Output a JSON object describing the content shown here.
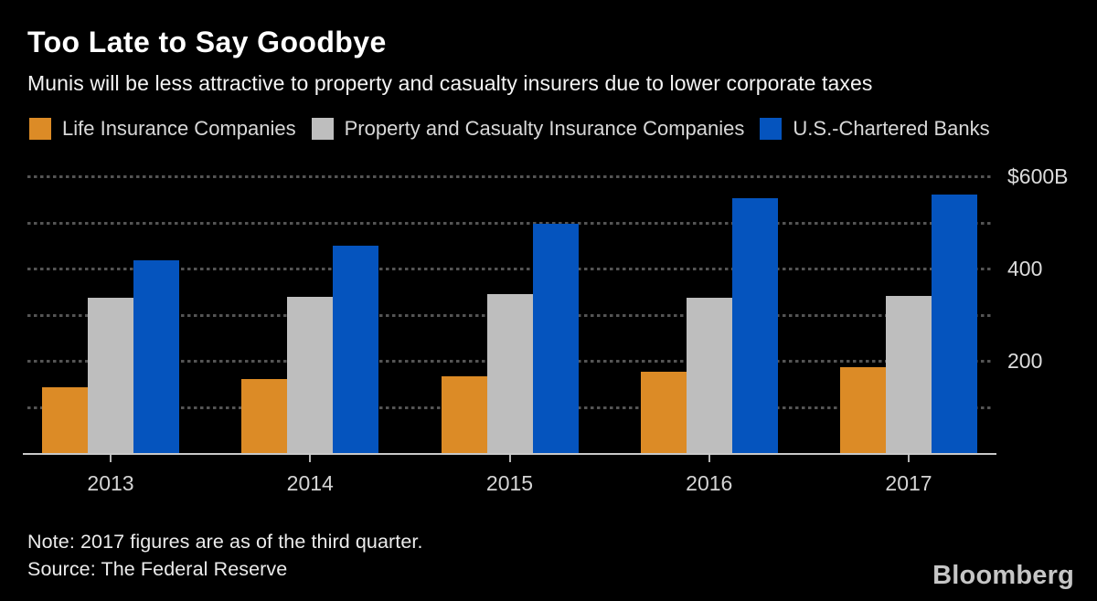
{
  "header": {
    "title": "Too Late to Say Goodbye",
    "subtitle": "Munis will be less attractive to property and casualty insurers due to lower corporate taxes"
  },
  "legend": [
    {
      "label": "Life Insurance Companies",
      "color": "#dc8b26"
    },
    {
      "label": "Property and Casualty Insurance Companies",
      "color": "#bebebe"
    },
    {
      "label": "U.S.-Chartered Banks",
      "color": "#0554be"
    }
  ],
  "chart_data": {
    "type": "bar",
    "title": "Too Late to Say Goodbye",
    "subtitle": "Munis will be less attractive to property and casualty insurers due to lower corporate taxes",
    "categories": [
      "2013",
      "2014",
      "2015",
      "2016",
      "2017"
    ],
    "series": [
      {
        "name": "Life Insurance Companies",
        "color": "#dc8b26",
        "values": [
          143,
          160,
          166,
          176,
          186
        ]
      },
      {
        "name": "Property and Casualty Insurance Companies",
        "color": "#bebebe",
        "values": [
          337,
          339,
          345,
          337,
          341
        ]
      },
      {
        "name": "U.S.-Chartered Banks",
        "color": "#0554be",
        "values": [
          417,
          449,
          498,
          552,
          560
        ]
      }
    ],
    "unit": "$B",
    "ylim": [
      0,
      640
    ],
    "ytick_values": [
      200,
      400,
      600
    ],
    "ytick_labels": [
      "200",
      "400",
      "$600B"
    ],
    "gridline_values": [
      100,
      200,
      300,
      400,
      500,
      600
    ],
    "grid": "dotted-horizontal",
    "legend_position": "top",
    "yaxis_side": "right"
  },
  "footer": {
    "note": "Note: 2017 figures are as of the third quarter.",
    "source": "Source: The Federal Reserve",
    "brand": "Bloomberg"
  }
}
